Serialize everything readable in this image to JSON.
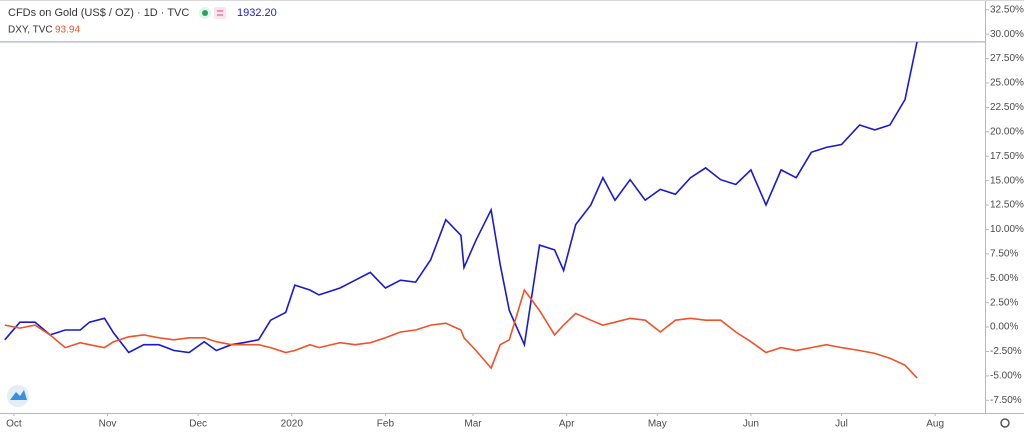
{
  "chart_data": {
    "type": "line",
    "title": "CFDs on Gold (US$ / OZ) · 1D · TVC",
    "title_value": "1932.20",
    "subtitle": "DXY, TVC",
    "subtitle_value": "93.94",
    "x": [
      -3,
      2,
      7,
      12,
      17,
      22,
      25,
      30,
      33,
      38,
      43,
      48,
      53,
      58,
      63,
      67,
      72,
      76,
      81,
      85,
      90,
      93,
      98,
      101,
      108,
      113,
      118,
      123,
      128,
      133,
      138,
      143,
      148,
      149,
      153,
      158,
      161,
      164,
      169,
      174,
      179,
      182,
      186,
      191,
      195,
      199,
      204,
      209,
      214,
      219,
      224,
      229,
      234,
      239,
      244,
      249,
      254,
      259,
      264,
      269,
      274,
      280,
      285,
      290,
      295,
      299
    ],
    "series": [
      {
        "name": "CFDs on Gold (US$ / OZ)",
        "color": "#1a1acc",
        "values": [
          -1.3,
          0.5,
          0.5,
          -0.8,
          -0.3,
          -0.3,
          0.5,
          0.9,
          -0.6,
          -2.6,
          -1.8,
          -1.8,
          -2.4,
          -2.6,
          -1.5,
          -2.4,
          -1.8,
          -1.6,
          -1.3,
          0.7,
          1.5,
          4.3,
          3.8,
          3.3,
          4.0,
          4.8,
          5.6,
          4.0,
          4.8,
          4.6,
          6.9,
          11.0,
          9.4,
          6.1,
          8.9,
          12.0,
          6.4,
          1.7,
          -1.8,
          8.4,
          7.9,
          5.8,
          10.5,
          12.5,
          15.3,
          13.0,
          15.1,
          13.0,
          14.1,
          13.6,
          15.3,
          16.3,
          15.1,
          14.6,
          16.1,
          12.5,
          16.1,
          15.3,
          17.9,
          18.4,
          18.7,
          20.7,
          20.2,
          20.7,
          23.3,
          29.2
        ]
      },
      {
        "name": "DXY, TVC",
        "color": "#f0522a",
        "values": [
          0.2,
          -0.1,
          0.2,
          -0.8,
          -2.1,
          -1.6,
          -1.8,
          -2.1,
          -1.5,
          -1.0,
          -0.8,
          -1.1,
          -1.3,
          -1.1,
          -1.1,
          -1.5,
          -1.8,
          -1.8,
          -1.8,
          -2.1,
          -2.6,
          -2.4,
          -1.8,
          -2.1,
          -1.6,
          -1.8,
          -1.6,
          -1.1,
          -0.5,
          -0.3,
          0.2,
          0.4,
          -0.3,
          -1.1,
          -2.4,
          -4.2,
          -1.8,
          -1.3,
          3.8,
          1.7,
          -0.8,
          0.2,
          1.4,
          0.7,
          0.2,
          0.5,
          0.9,
          0.7,
          -0.5,
          0.7,
          0.9,
          0.7,
          0.7,
          -0.5,
          -1.5,
          -2.6,
          -2.1,
          -2.4,
          -2.1,
          -1.8,
          -2.1,
          -2.4,
          -2.7,
          -3.2,
          -3.9,
          -5.2
        ]
      }
    ],
    "xlim": [
      -4.6,
      321.5
    ],
    "xticks": [
      {
        "value": 0,
        "label": "Oct"
      },
      {
        "value": 31,
        "label": "Nov"
      },
      {
        "value": 61,
        "label": "Dec"
      },
      {
        "value": 92,
        "label": "2020"
      },
      {
        "value": 123,
        "label": "Feb"
      },
      {
        "value": 152,
        "label": "Mar"
      },
      {
        "value": 183,
        "label": "Apr"
      },
      {
        "value": 213,
        "label": "May"
      },
      {
        "value": 244,
        "label": "Jun"
      },
      {
        "value": 274,
        "label": "Jul"
      },
      {
        "value": 305,
        "label": "Aug"
      }
    ],
    "ylim": [
      -8.8,
      33.5
    ],
    "yticks": [
      {
        "value": 32.5,
        "label": "32.50%"
      },
      {
        "value": 30,
        "label": "30.00%"
      },
      {
        "value": 27.5,
        "label": "27.50%"
      },
      {
        "value": 25,
        "label": "25.00%"
      },
      {
        "value": 22.5,
        "label": "22.50%"
      },
      {
        "value": 20,
        "label": "20.00%"
      },
      {
        "value": 17.5,
        "label": "17.50%"
      },
      {
        "value": 15,
        "label": "15.00%"
      },
      {
        "value": 12.5,
        "label": "12.50%"
      },
      {
        "value": 10,
        "label": "10.00%"
      },
      {
        "value": 7.5,
        "label": "7.50%"
      },
      {
        "value": 5,
        "label": "5.00%"
      },
      {
        "value": 2.5,
        "label": "2.50%"
      },
      {
        "value": 0,
        "label": "0.00%"
      },
      {
        "value": -2.5,
        "label": "-2.50%"
      },
      {
        "value": -5,
        "label": "-5.00%"
      },
      {
        "value": -7.5,
        "label": "-7.50%"
      }
    ],
    "grid": false
  }
}
